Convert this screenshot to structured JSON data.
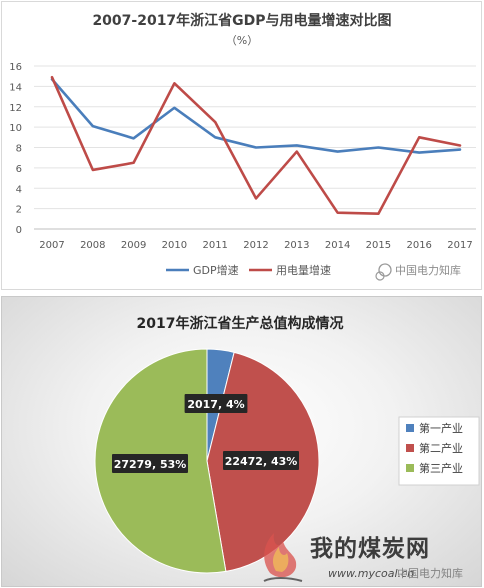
{
  "chart_data": [
    {
      "type": "line",
      "title": "2007-2017年浙江省GDP与用电量增速对比图",
      "subtitle": "（%）",
      "x": [
        "2007",
        "2008",
        "2009",
        "2010",
        "2011",
        "2012",
        "2013",
        "2014",
        "2015",
        "2016",
        "2017"
      ],
      "ylim": [
        0,
        16
      ],
      "yticks": [
        "0",
        "2",
        "4",
        "6",
        "8",
        "10",
        "12",
        "14",
        "16"
      ],
      "grid": true,
      "legend_position": "bottom",
      "series": [
        {
          "name": "GDP增速",
          "color": "#4a7ebb",
          "values": [
            14.7,
            10.1,
            8.9,
            11.9,
            9.0,
            8.0,
            8.2,
            7.6,
            8.0,
            7.5,
            7.8
          ]
        },
        {
          "name": "用电量增速",
          "color": "#be4b48",
          "values": [
            14.9,
            5.8,
            6.5,
            14.3,
            10.5,
            3.0,
            7.6,
            1.6,
            1.5,
            9.0,
            8.2
          ]
        }
      ]
    },
    {
      "type": "pie",
      "title": "2017年浙江省生产总值构成情况",
      "legend_position": "right",
      "slices": [
        {
          "name": "第一产业",
          "value": 2017,
          "label": "2017, 4%",
          "color": "#4f81bd"
        },
        {
          "name": "第二产业",
          "value": 22472,
          "label": "22472, 43%",
          "color": "#c0504d"
        },
        {
          "name": "第三产业",
          "value": 27279,
          "label": "27279, 53%",
          "color": "#9bbb59"
        }
      ]
    }
  ],
  "watermarks": {
    "top": "中国电力知库",
    "bottom_logo": "我的煤炭网",
    "bottom_url": "www.mycoal.cn",
    "bottom_overlay": "中国电力知库"
  }
}
